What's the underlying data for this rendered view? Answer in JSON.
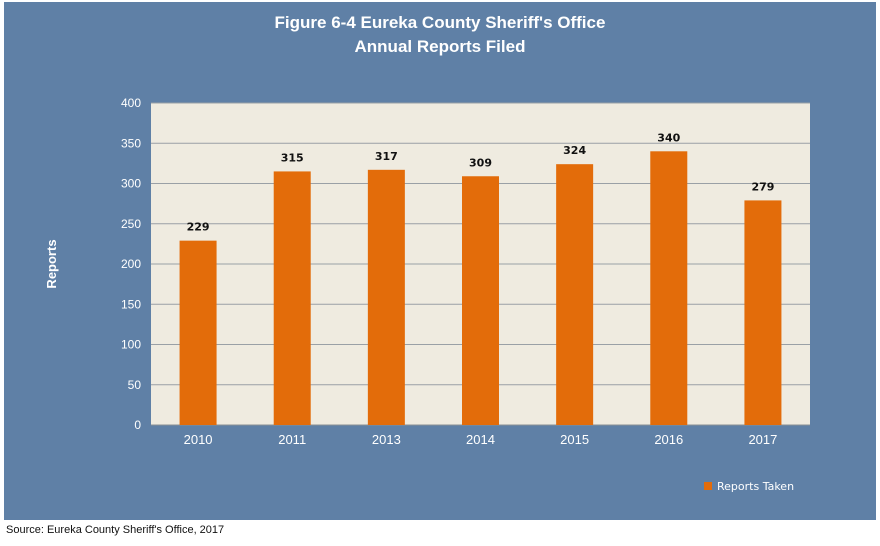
{
  "source_note": "Source: Eureka County Sheriff's Office, 2017",
  "colors": {
    "background": "#5f80a6",
    "plot_area": "#efebe0",
    "bar": "#e36c0a",
    "grid": "#9aa0a6"
  },
  "chart_data": {
    "type": "bar",
    "title": "Figure 6-4 Eureka County Sheriff's Office",
    "subtitle": "Annual Reports Filed",
    "xlabel": "",
    "ylabel": "Reports",
    "ylim": [
      0,
      400
    ],
    "yticks": [
      0,
      50,
      100,
      150,
      200,
      250,
      300,
      350,
      400
    ],
    "categories": [
      "2010",
      "2011",
      "2013",
      "2014",
      "2015",
      "2016",
      "2017"
    ],
    "series": [
      {
        "name": "Reports Taken",
        "values": [
          229,
          315,
          317,
          309,
          324,
          340,
          279
        ]
      }
    ],
    "data_labels": true,
    "grid": true,
    "legend": "bottom-right"
  }
}
